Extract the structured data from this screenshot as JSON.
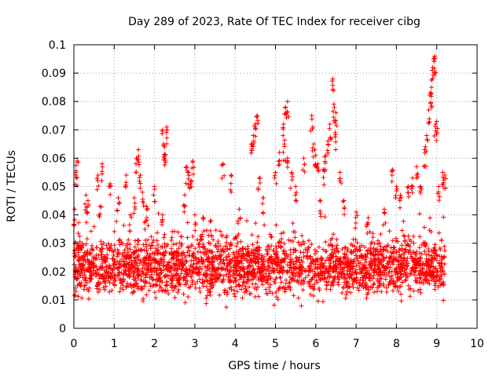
{
  "chart_data": {
    "type": "scatter",
    "title": "Day 289 of 2023, Rate Of TEC Index for receiver cibg",
    "xlabel": "GPS time / hours",
    "ylabel": "ROTI / TECUs",
    "xlim": [
      0,
      10
    ],
    "ylim": [
      0,
      0.1
    ],
    "xticks": [
      "0",
      "1",
      "2",
      "3",
      "4",
      "5",
      "6",
      "7",
      "8",
      "9",
      "10"
    ],
    "yticks": [
      "0",
      "0.01",
      "0.02",
      "0.03",
      "0.04",
      "0.05",
      "0.06",
      "0.07",
      "0.08",
      "0.09",
      "0.1"
    ],
    "grid": true,
    "marker": "+",
    "marker_color": "#ff0000",
    "series": [
      {
        "name": "ROTI",
        "x_range": [
          0,
          9.2
        ],
        "bulk_range": [
          0.008,
          0.035
        ],
        "points": [
          [
            0.02,
            0.042
          ],
          [
            0.05,
            0.055
          ],
          [
            0.08,
            0.059
          ],
          [
            0.1,
            0.029
          ],
          [
            0.3,
            0.047
          ],
          [
            0.35,
            0.045
          ],
          [
            0.6,
            0.054
          ],
          [
            0.7,
            0.058
          ],
          [
            0.65,
            0.043
          ],
          [
            0.9,
            0.051
          ],
          [
            1.1,
            0.046
          ],
          [
            1.3,
            0.054
          ],
          [
            1.4,
            0.04
          ],
          [
            1.5,
            0.046
          ],
          [
            1.55,
            0.06
          ],
          [
            1.6,
            0.063
          ],
          [
            1.65,
            0.054
          ],
          [
            1.7,
            0.048
          ],
          [
            1.8,
            0.043
          ],
          [
            2.0,
            0.05
          ],
          [
            2.2,
            0.07
          ],
          [
            2.25,
            0.064
          ],
          [
            2.3,
            0.071
          ],
          [
            2.25,
            0.06
          ],
          [
            2.2,
            0.04
          ],
          [
            2.8,
            0.057
          ],
          [
            2.85,
            0.055
          ],
          [
            2.9,
            0.052
          ],
          [
            2.95,
            0.059
          ],
          [
            2.75,
            0.047
          ],
          [
            3.0,
            0.04
          ],
          [
            3.2,
            0.039
          ],
          [
            3.4,
            0.038
          ],
          [
            3.7,
            0.058
          ],
          [
            3.9,
            0.054
          ],
          [
            4.1,
            0.042
          ],
          [
            4.4,
            0.065
          ],
          [
            4.45,
            0.068
          ],
          [
            4.5,
            0.072
          ],
          [
            4.55,
            0.075
          ],
          [
            4.6,
            0.053
          ],
          [
            4.7,
            0.046
          ],
          [
            5.0,
            0.055
          ],
          [
            5.1,
            0.062
          ],
          [
            5.2,
            0.072
          ],
          [
            5.25,
            0.078
          ],
          [
            5.3,
            0.08
          ],
          [
            5.22,
            0.065
          ],
          [
            5.3,
            0.06
          ],
          [
            5.4,
            0.055
          ],
          [
            5.5,
            0.05
          ],
          [
            5.7,
            0.06
          ],
          [
            5.9,
            0.075
          ],
          [
            5.95,
            0.065
          ],
          [
            6.0,
            0.061
          ],
          [
            6.05,
            0.058
          ],
          [
            6.1,
            0.045
          ],
          [
            6.2,
            0.056
          ],
          [
            6.25,
            0.061
          ],
          [
            6.3,
            0.066
          ],
          [
            6.35,
            0.072
          ],
          [
            6.42,
            0.088
          ],
          [
            6.45,
            0.079
          ],
          [
            6.5,
            0.076
          ],
          [
            6.48,
            0.069
          ],
          [
            6.6,
            0.055
          ],
          [
            6.7,
            0.045
          ],
          [
            7.0,
            0.041
          ],
          [
            7.3,
            0.039
          ],
          [
            7.7,
            0.042
          ],
          [
            7.9,
            0.056
          ],
          [
            8.0,
            0.05
          ],
          [
            8.1,
            0.047
          ],
          [
            8.3,
            0.05
          ],
          [
            8.4,
            0.053
          ],
          [
            8.5,
            0.057
          ],
          [
            8.6,
            0.05
          ],
          [
            8.7,
            0.063
          ],
          [
            8.75,
            0.068
          ],
          [
            8.8,
            0.077
          ],
          [
            8.85,
            0.083
          ],
          [
            8.87,
            0.085
          ],
          [
            8.9,
            0.092
          ],
          [
            8.92,
            0.095
          ],
          [
            8.95,
            0.096
          ],
          [
            8.97,
            0.072
          ],
          [
            9.0,
            0.073
          ],
          [
            9.05,
            0.05
          ],
          [
            9.15,
            0.055
          ],
          [
            9.2,
            0.054
          ]
        ]
      }
    ]
  }
}
